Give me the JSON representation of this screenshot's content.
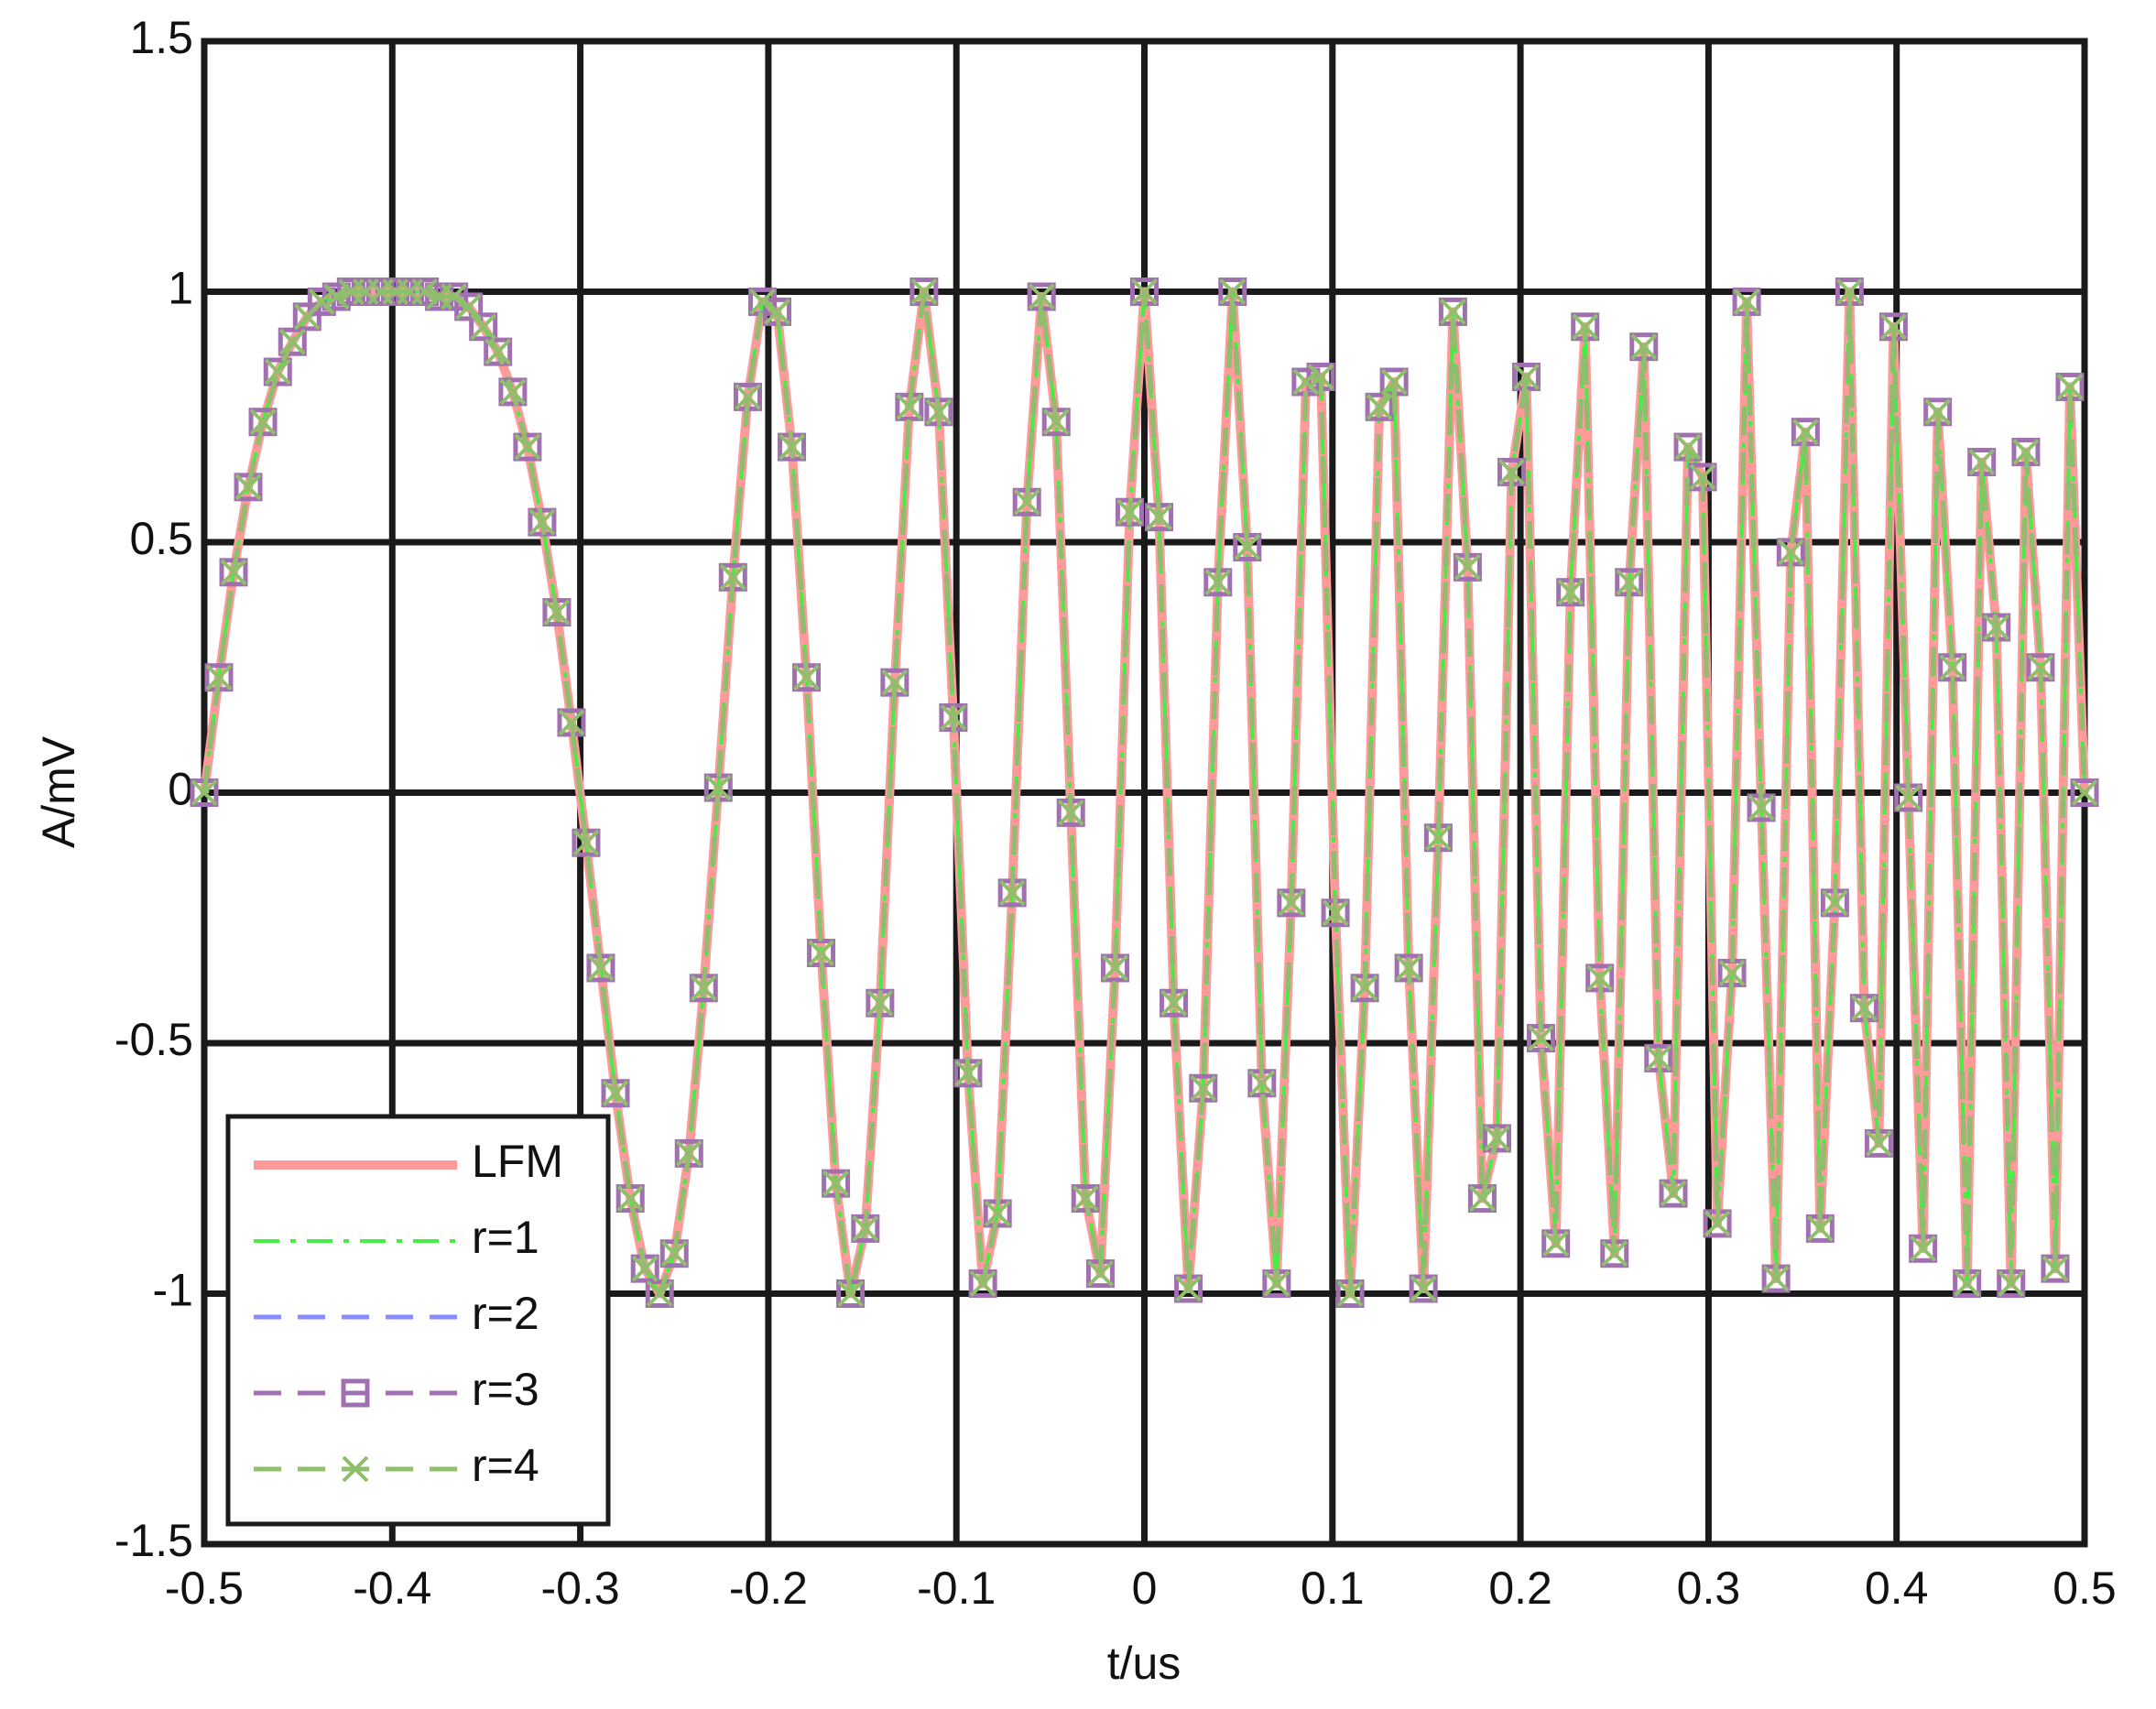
{
  "chart_data": {
    "type": "line",
    "xlabel": "t/us",
    "ylabel": "A/mV",
    "xlim": [
      -0.5,
      0.5
    ],
    "ylim": [
      -1.5,
      1.5
    ],
    "xticks": [
      -0.5,
      -0.4,
      -0.3,
      -0.2,
      -0.1,
      0,
      0.1,
      0.2,
      0.3,
      0.4,
      0.5
    ],
    "yticks": [
      -1.5,
      -1,
      -0.5,
      0,
      0.5,
      1,
      1.5
    ],
    "grid": true,
    "legend": "lower left",
    "x": [
      -0.5,
      -0.4922,
      -0.4844,
      -0.4766,
      -0.4688,
      -0.4609,
      -0.4531,
      -0.4453,
      -0.4375,
      -0.4297,
      -0.4219,
      -0.4141,
      -0.4063,
      -0.3984,
      -0.3906,
      -0.3828,
      -0.375,
      -0.3672,
      -0.3594,
      -0.3516,
      -0.3438,
      -0.3359,
      -0.3281,
      -0.3203,
      -0.3125,
      -0.3047,
      -0.2969,
      -0.2891,
      -0.2813,
      -0.2734,
      -0.2656,
      -0.2578,
      -0.25,
      -0.2422,
      -0.2344,
      -0.2266,
      -0.2188,
      -0.2109,
      -0.2031,
      -0.1953,
      -0.1875,
      -0.1797,
      -0.1719,
      -0.1641,
      -0.1563,
      -0.1484,
      -0.1406,
      -0.1328,
      -0.125,
      -0.1172,
      -0.1094,
      -0.1016,
      -0.0938,
      -0.0859,
      -0.0781,
      -0.0703,
      -0.0625,
      -0.0547,
      -0.0469,
      -0.0391,
      -0.0313,
      -0.0234,
      -0.0156,
      -0.0078,
      0,
      0.0078,
      0.0156,
      0.0234,
      0.0313,
      0.0391,
      0.0469,
      0.0547,
      0.0625,
      0.0703,
      0.0781,
      0.0859,
      0.0938,
      0.1016,
      0.1094,
      0.1172,
      0.125,
      0.1328,
      0.1406,
      0.1484,
      0.1563,
      0.1641,
      0.1719,
      0.1797,
      0.1875,
      0.1953,
      0.2031,
      0.2109,
      0.2188,
      0.2266,
      0.2344,
      0.2422,
      0.25,
      0.2578,
      0.2656,
      0.2734,
      0.2813,
      0.2891,
      0.2969,
      0.3047,
      0.3125,
      0.3203,
      0.3281,
      0.3359,
      0.3438,
      0.3516,
      0.3594,
      0.3672,
      0.375,
      0.3828,
      0.3906,
      0.3984,
      0.4063,
      0.4141,
      0.4219,
      0.4297,
      0.4375,
      0.4453,
      0.4531,
      0.4609,
      0.4688,
      0.4766,
      0.4844,
      0.4922,
      0.5
    ],
    "series": [
      {
        "name": "LFM",
        "color": "#ff9a9a",
        "linestyle": "solid",
        "values": [
          0,
          0.23,
          0.44,
          0.61,
          0.74,
          0.84,
          0.9,
          0.95,
          0.98,
          0.99,
          1,
          1,
          1,
          1,
          1,
          1,
          0.99,
          0.99,
          0.97,
          0.93,
          0.88,
          0.8,
          0.69,
          0.54,
          0.36,
          0.14,
          -0.1,
          -0.35,
          -0.6,
          -0.81,
          -0.95,
          -1,
          -0.92,
          -0.72,
          -0.39,
          0.01,
          0.43,
          0.79,
          0.98,
          0.96,
          0.69,
          0.23,
          -0.32,
          -0.78,
          -1,
          -0.87,
          -0.42,
          0.22,
          0.77,
          1,
          0.76,
          0.15,
          -0.56,
          -0.98,
          -0.84,
          -0.2,
          0.58,
          0.99,
          0.74,
          -0.04,
          -0.81,
          -0.96,
          -0.35,
          0.56,
          1,
          0.55,
          -0.42,
          -0.99,
          -0.59,
          0.42,
          1,
          0.49,
          -0.58,
          -0.98,
          -0.22,
          0.82,
          0.83,
          -0.24,
          -1,
          -0.39,
          0.77,
          0.82,
          -0.35,
          -0.99,
          -0.09,
          0.96,
          0.45,
          -0.81,
          -0.69,
          0.64,
          0.83,
          -0.49,
          -0.9,
          0.4,
          0.93,
          -0.37,
          -0.92,
          0.42,
          0.89,
          -0.53,
          -0.8,
          0.69,
          0.63,
          -0.86,
          -0.36,
          0.98,
          -0.03,
          -0.97,
          0.48,
          0.72,
          -0.87,
          -0.22,
          1,
          -0.43,
          -0.7,
          0.93,
          -0.01,
          -0.91,
          0.76,
          0.25,
          -0.98,
          0.66,
          0.33,
          -0.98,
          0.68,
          0.25,
          -0.95,
          0.81,
          0
        ]
      },
      {
        "name": "r=1",
        "color": "#44ee44",
        "linestyle": "dashdot",
        "values": [
          0,
          0.23,
          0.44,
          0.61,
          0.74,
          0.84,
          0.9,
          0.95,
          0.98,
          0.99,
          1,
          1,
          1,
          1,
          1,
          1,
          0.99,
          0.99,
          0.97,
          0.93,
          0.88,
          0.8,
          0.69,
          0.54,
          0.36,
          0.14,
          -0.1,
          -0.35,
          -0.6,
          -0.81,
          -0.95,
          -1,
          -0.92,
          -0.72,
          -0.39,
          0.01,
          0.43,
          0.79,
          0.98,
          0.96,
          0.69,
          0.23,
          -0.32,
          -0.78,
          -1,
          -0.87,
          -0.42,
          0.22,
          0.77,
          1,
          0.76,
          0.15,
          -0.56,
          -0.98,
          -0.84,
          -0.2,
          0.58,
          0.99,
          0.74,
          -0.04,
          -0.81,
          -0.96,
          -0.35,
          0.56,
          1,
          0.55,
          -0.42,
          -0.99,
          -0.59,
          0.42,
          1,
          0.49,
          -0.58,
          -0.98,
          -0.22,
          0.82,
          0.83,
          -0.24,
          -1,
          -0.39,
          0.77,
          0.82,
          -0.35,
          -0.99,
          -0.09,
          0.96,
          0.45,
          -0.81,
          -0.69,
          0.64,
          0.83,
          -0.49,
          -0.9,
          0.4,
          0.93,
          -0.37,
          -0.92,
          0.42,
          0.89,
          -0.53,
          -0.8,
          0.69,
          0.63,
          -0.86,
          -0.36,
          0.98,
          -0.03,
          -0.97,
          0.48,
          0.72,
          -0.87,
          -0.22,
          1,
          -0.43,
          -0.7,
          0.93,
          -0.01,
          -0.91,
          0.76,
          0.25,
          -0.98,
          0.66,
          0.33,
          -0.98,
          0.68,
          0.25,
          -0.95,
          0.81,
          0
        ]
      },
      {
        "name": "r=2",
        "color": "#8a8aff",
        "linestyle": "dashed",
        "values": [
          0,
          0.23,
          0.44,
          0.61,
          0.74,
          0.84,
          0.9,
          0.95,
          0.98,
          0.99,
          1,
          1,
          1,
          1,
          1,
          1,
          0.99,
          0.99,
          0.97,
          0.93,
          0.88,
          0.8,
          0.69,
          0.54,
          0.36,
          0.14,
          -0.1,
          -0.35,
          -0.6,
          -0.81,
          -0.95,
          -1,
          -0.92,
          -0.72,
          -0.39,
          0.01,
          0.43,
          0.79,
          0.98,
          0.96,
          0.69,
          0.23,
          -0.32,
          -0.78,
          -1,
          -0.87,
          -0.42,
          0.22,
          0.77,
          1,
          0.76,
          0.15,
          -0.56,
          -0.98,
          -0.84,
          -0.2,
          0.58,
          0.99,
          0.74,
          -0.04,
          -0.81,
          -0.96,
          -0.35,
          0.56,
          1,
          0.55,
          -0.42,
          -0.99,
          -0.59,
          0.42,
          1,
          0.49,
          -0.58,
          -0.98,
          -0.22,
          0.82,
          0.83,
          -0.24,
          -1,
          -0.39,
          0.77,
          0.82,
          -0.35,
          -0.99,
          -0.09,
          0.96,
          0.45,
          -0.81,
          -0.69,
          0.64,
          0.83,
          -0.49,
          -0.9,
          0.4,
          0.93,
          -0.37,
          -0.92,
          0.42,
          0.89,
          -0.53,
          -0.8,
          0.69,
          0.63,
          -0.86,
          -0.36,
          0.98,
          -0.03,
          -0.97,
          0.48,
          0.72,
          -0.87,
          -0.22,
          1,
          -0.43,
          -0.7,
          0.93,
          -0.01,
          -0.91,
          0.76,
          0.25,
          -0.98,
          0.66,
          0.33,
          -0.98,
          0.68,
          0.25,
          -0.95,
          0.81,
          0
        ]
      },
      {
        "name": "r=3",
        "color": "#a070b0",
        "linestyle": "dashed",
        "marker": "square",
        "values": [
          0,
          0.23,
          0.44,
          0.61,
          0.74,
          0.84,
          0.9,
          0.95,
          0.98,
          0.99,
          1,
          1,
          1,
          1,
          1,
          1,
          0.99,
          0.99,
          0.97,
          0.93,
          0.88,
          0.8,
          0.69,
          0.54,
          0.36,
          0.14,
          -0.1,
          -0.35,
          -0.6,
          -0.81,
          -0.95,
          -1,
          -0.92,
          -0.72,
          -0.39,
          0.01,
          0.43,
          0.79,
          0.98,
          0.96,
          0.69,
          0.23,
          -0.32,
          -0.78,
          -1,
          -0.87,
          -0.42,
          0.22,
          0.77,
          1,
          0.76,
          0.15,
          -0.56,
          -0.98,
          -0.84,
          -0.2,
          0.58,
          0.99,
          0.74,
          -0.04,
          -0.81,
          -0.96,
          -0.35,
          0.56,
          1,
          0.55,
          -0.42,
          -0.99,
          -0.59,
          0.42,
          1,
          0.49,
          -0.58,
          -0.98,
          -0.22,
          0.82,
          0.83,
          -0.24,
          -1,
          -0.39,
          0.77,
          0.82,
          -0.35,
          -0.99,
          -0.09,
          0.96,
          0.45,
          -0.81,
          -0.69,
          0.64,
          0.83,
          -0.49,
          -0.9,
          0.4,
          0.93,
          -0.37,
          -0.92,
          0.42,
          0.89,
          -0.53,
          -0.8,
          0.69,
          0.63,
          -0.86,
          -0.36,
          0.98,
          -0.03,
          -0.97,
          0.48,
          0.72,
          -0.87,
          -0.22,
          1,
          -0.43,
          -0.7,
          0.93,
          -0.01,
          -0.91,
          0.76,
          0.25,
          -0.98,
          0.66,
          0.33,
          -0.98,
          0.68,
          0.25,
          -0.95,
          0.81,
          0
        ]
      },
      {
        "name": "r=4",
        "color": "#8fbf6a",
        "linestyle": "dashed",
        "marker": "x",
        "values": [
          0,
          0.23,
          0.44,
          0.61,
          0.74,
          0.84,
          0.9,
          0.95,
          0.98,
          0.99,
          1,
          1,
          1,
          1,
          1,
          1,
          0.99,
          0.99,
          0.97,
          0.93,
          0.88,
          0.8,
          0.69,
          0.54,
          0.36,
          0.14,
          -0.1,
          -0.35,
          -0.6,
          -0.81,
          -0.95,
          -1,
          -0.92,
          -0.72,
          -0.39,
          0.01,
          0.43,
          0.79,
          0.98,
          0.96,
          0.69,
          0.23,
          -0.32,
          -0.78,
          -1,
          -0.87,
          -0.42,
          0.22,
          0.77,
          1,
          0.76,
          0.15,
          -0.56,
          -0.98,
          -0.84,
          -0.2,
          0.58,
          0.99,
          0.74,
          -0.04,
          -0.81,
          -0.96,
          -0.35,
          0.56,
          1,
          0.55,
          -0.42,
          -0.99,
          -0.59,
          0.42,
          1,
          0.49,
          -0.58,
          -0.98,
          -0.22,
          0.82,
          0.83,
          -0.24,
          -1,
          -0.39,
          0.77,
          0.82,
          -0.35,
          -0.99,
          -0.09,
          0.96,
          0.45,
          -0.81,
          -0.69,
          0.64,
          0.83,
          -0.49,
          -0.9,
          0.4,
          0.93,
          -0.37,
          -0.92,
          0.42,
          0.89,
          -0.53,
          -0.8,
          0.69,
          0.63,
          -0.86,
          -0.36,
          0.98,
          -0.03,
          -0.97,
          0.48,
          0.72,
          -0.87,
          -0.22,
          1,
          -0.43,
          -0.7,
          0.93,
          -0.01,
          -0.91,
          0.76,
          0.25,
          -0.98,
          0.66,
          0.33,
          -0.98,
          0.68,
          0.25,
          -0.95,
          0.81,
          0
        ]
      }
    ]
  }
}
